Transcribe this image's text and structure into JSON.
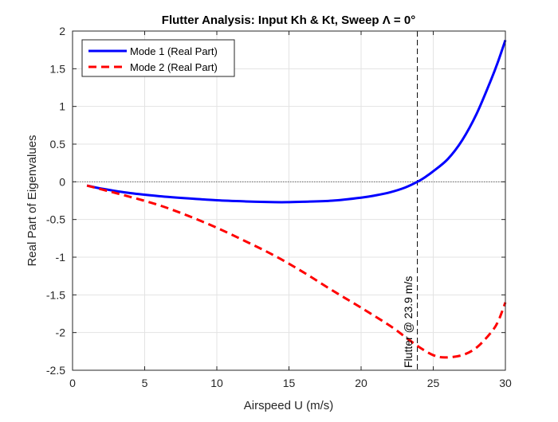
{
  "figure": {
    "title": "Flutter Analysis: Input Kh & Kt, Sweep Λ = 0°",
    "xlabel": "Airspeed U (m/s)",
    "ylabel": "Real Part of Eigenvalues",
    "annotation": "Flutter @ 23.9 m/s"
  },
  "chart_data": {
    "type": "line",
    "title": "Flutter Analysis: Input Kh & Kt, Sweep Λ = 0°",
    "xlabel": "Airspeed U (m/s)",
    "ylabel": "Real Part of Eigenvalues",
    "xlim": [
      0,
      30
    ],
    "ylim": [
      -2.5,
      2
    ],
    "xticks": [
      0,
      5,
      10,
      15,
      20,
      25,
      30
    ],
    "yticks": [
      -2.5,
      -2,
      -1.5,
      -1,
      -0.5,
      0,
      0.5,
      1,
      1.5,
      2
    ],
    "grid": true,
    "legend_position": "top-left",
    "series": [
      {
        "name": "Mode 1 (Real Part)",
        "color": "#0000ff",
        "line_style": "solid",
        "x": [
          1,
          2,
          4,
          6,
          8,
          10,
          12,
          14,
          15,
          16,
          18,
          20,
          21,
          22,
          23,
          23.9,
          24.5,
          25,
          26,
          27,
          28,
          29,
          29.5,
          30
        ],
        "y": [
          -0.05,
          -0.09,
          -0.15,
          -0.19,
          -0.22,
          -0.245,
          -0.26,
          -0.27,
          -0.27,
          -0.265,
          -0.25,
          -0.21,
          -0.18,
          -0.14,
          -0.08,
          0.0,
          0.07,
          0.14,
          0.3,
          0.55,
          0.9,
          1.35,
          1.6,
          1.88
        ]
      },
      {
        "name": "Mode 2 (Real Part)",
        "color": "#ff0000",
        "line_style": "dashed",
        "x": [
          1,
          2,
          4,
          6,
          8,
          10,
          12,
          14,
          16,
          18,
          20,
          22,
          23,
          24,
          25,
          25.8,
          27,
          28,
          29,
          29.5,
          30
        ],
        "y": [
          -0.05,
          -0.1,
          -0.2,
          -0.31,
          -0.45,
          -0.61,
          -0.79,
          -0.98,
          -1.2,
          -1.44,
          -1.67,
          -1.91,
          -2.05,
          -2.19,
          -2.3,
          -2.33,
          -2.3,
          -2.2,
          -2.0,
          -1.85,
          -1.6
        ]
      }
    ],
    "reference_lines": [
      {
        "type": "vertical",
        "x": 23.9,
        "style": "dashed",
        "color": "#000000"
      },
      {
        "type": "horizontal",
        "y": 0,
        "style": "dotted",
        "color": "#555555"
      }
    ]
  }
}
